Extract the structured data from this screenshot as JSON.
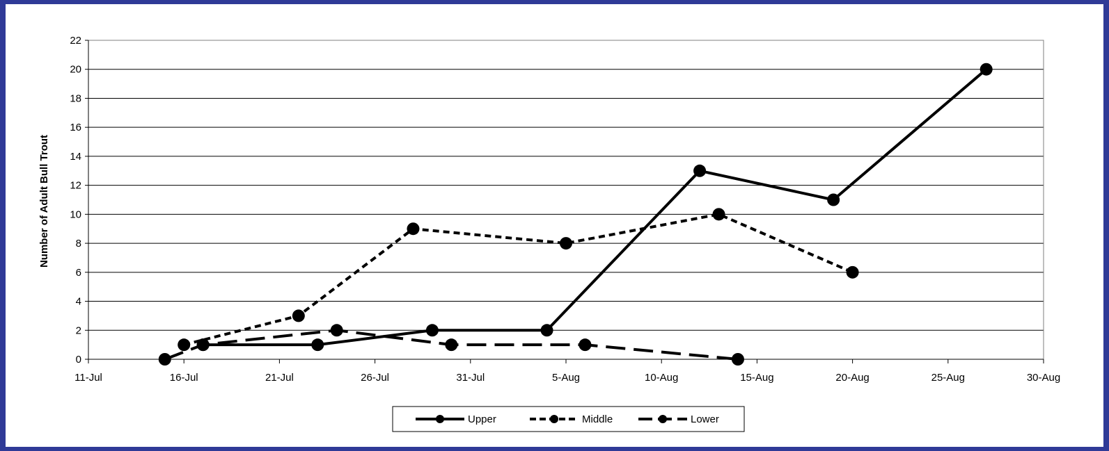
{
  "chart_data": {
    "type": "line",
    "title": "",
    "xlabel": "",
    "ylabel": "Number of Adult Bull Trout",
    "x_axis": {
      "type": "date",
      "ticks": [
        "11-Jul",
        "16-Jul",
        "21-Jul",
        "26-Jul",
        "31-Jul",
        "5-Aug",
        "10-Aug",
        "15-Aug",
        "20-Aug",
        "25-Aug",
        "30-Aug"
      ],
      "range": [
        "11-Jul",
        "30-Aug"
      ]
    },
    "y_axis": {
      "ticks": [
        "0",
        "2",
        "4",
        "6",
        "8",
        "10",
        "12",
        "14",
        "16",
        "18",
        "20",
        "22"
      ],
      "ylim": [
        0,
        22
      ]
    },
    "grid": "horizontal major gridlines",
    "legend_position": "bottom",
    "series": [
      {
        "name": "Upper",
        "line_style": "solid",
        "color": "#000000",
        "points": [
          {
            "x": "17-Jul",
            "y": 1
          },
          {
            "x": "23-Jul",
            "y": 1
          },
          {
            "x": "29-Jul",
            "y": 2
          },
          {
            "x": "4-Aug",
            "y": 2
          },
          {
            "x": "12-Aug",
            "y": 13
          },
          {
            "x": "19-Aug",
            "y": 11
          },
          {
            "x": "27-Aug",
            "y": 20
          }
        ]
      },
      {
        "name": "Middle",
        "line_style": "short-dash",
        "color": "#000000",
        "points": [
          {
            "x": "16-Jul",
            "y": 1
          },
          {
            "x": "22-Jul",
            "y": 3
          },
          {
            "x": "28-Jul",
            "y": 9
          },
          {
            "x": "5-Aug",
            "y": 8
          },
          {
            "x": "13-Aug",
            "y": 10
          },
          {
            "x": "20-Aug",
            "y": 6
          }
        ]
      },
      {
        "name": "Lower",
        "line_style": "long-dash",
        "color": "#000000",
        "points": [
          {
            "x": "15-Jul",
            "y": 0
          },
          {
            "x": "17-Jul",
            "y": 1
          },
          {
            "x": "24-Jul",
            "y": 2
          },
          {
            "x": "30-Jul",
            "y": 1
          },
          {
            "x": "6-Aug",
            "y": 1
          },
          {
            "x": "14-Aug",
            "y": 0
          }
        ]
      }
    ]
  },
  "colors": {
    "background_frame": "#2f3a97",
    "plot_background": "#ffffff",
    "gridline": "#000000",
    "series": "#000000"
  }
}
